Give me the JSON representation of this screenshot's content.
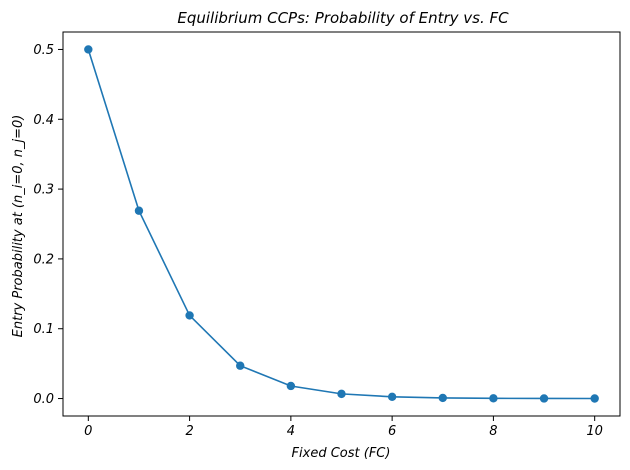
{
  "chart_data": {
    "type": "line",
    "title": "Equilibrium CCPs: Probability of Entry vs. FC",
    "xlabel": "Fixed Cost (FC)",
    "ylabel": "Entry Probability at (n_i=0, n_j=0)",
    "x": [
      0,
      1,
      2,
      3,
      4,
      5,
      6,
      7,
      8,
      9,
      10
    ],
    "series": [
      {
        "values": [
          0.5,
          0.269,
          0.119,
          0.047,
          0.018,
          0.0067,
          0.0025,
          0.0009,
          0.0003,
          0.0001,
          5e-05
        ],
        "color": "#1f77b4",
        "marker": "circle"
      }
    ],
    "xlim": [
      -0.5,
      10.5
    ],
    "ylim": [
      -0.025,
      0.525
    ],
    "xticks": [
      0,
      2,
      4,
      6,
      8,
      10
    ],
    "xtick_labels": [
      "0",
      "2",
      "4",
      "6",
      "8",
      "10"
    ],
    "yticks": [
      0.0,
      0.1,
      0.2,
      0.3,
      0.4,
      0.5
    ],
    "ytick_labels": [
      "0.0",
      "0.1",
      "0.2",
      "0.3",
      "0.4",
      "0.5"
    ],
    "grid": false,
    "legend": false
  }
}
